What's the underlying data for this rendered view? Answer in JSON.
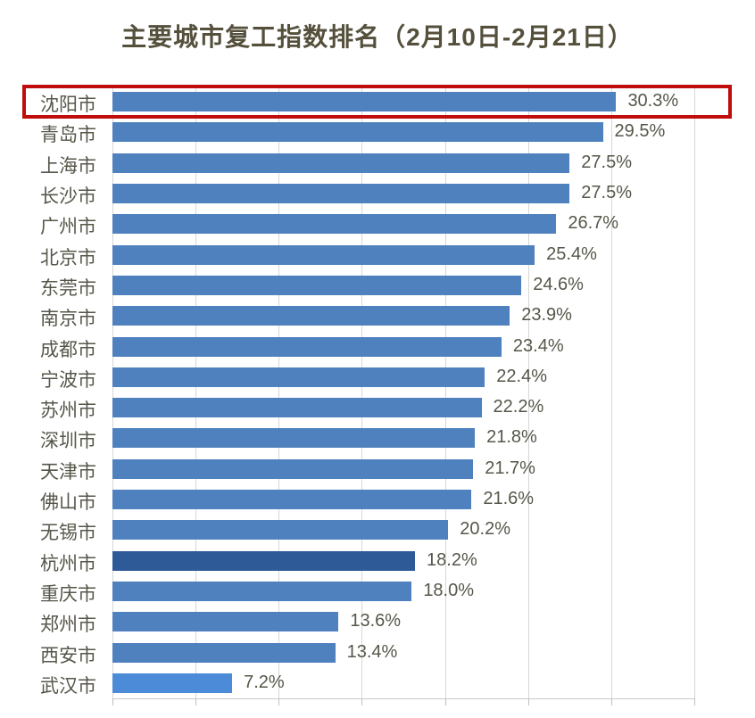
{
  "title": "主要城市复工指数排名（2月10日-2月21日）",
  "colors": {
    "bar": "#4E81BD",
    "bar_dark": "#2E5B97",
    "bar_light": "#4C8BD8",
    "grid": "#D6D6D6",
    "axis": "#BFBFBF",
    "label_text": "#57564A",
    "title_text": "#54503C",
    "highlight_border": "#C00C0C"
  },
  "chart_data": {
    "type": "bar",
    "orientation": "horizontal",
    "title": "主要城市复工指数排名（2月10日-2月21日）",
    "xlabel": "",
    "ylabel": "",
    "xlim": [
      0,
      35
    ],
    "gridline_step": 5,
    "grid": true,
    "unit": "%",
    "categories": [
      "沈阳市",
      "青岛市",
      "上海市",
      "长沙市",
      "广州市",
      "北京市",
      "东莞市",
      "南京市",
      "成都市",
      "宁波市",
      "苏州市",
      "深圳市",
      "天津市",
      "佛山市",
      "无锡市",
      "杭州市",
      "重庆市",
      "郑州市",
      "西安市",
      "武汉市"
    ],
    "values": [
      30.3,
      29.5,
      27.5,
      27.5,
      26.7,
      25.4,
      24.6,
      23.9,
      23.4,
      22.4,
      22.2,
      21.8,
      21.7,
      21.6,
      20.2,
      18.2,
      18.0,
      13.6,
      13.4,
      7.2
    ],
    "value_labels": [
      "30.3%",
      "29.5%",
      "27.5%",
      "27.5%",
      "26.7%",
      "25.4%",
      "24.6%",
      "23.9%",
      "23.4%",
      "22.4%",
      "22.2%",
      "21.8%",
      "21.7%",
      "21.6%",
      "20.2%",
      "18.2%",
      "18.0%",
      "13.6%",
      "13.4%",
      "7.2%"
    ],
    "bar_color_overrides": {
      "杭州市": "#2E5B97",
      "武汉市": "#4C8BD8"
    },
    "highlighted_category": "沈阳市",
    "legend": null
  }
}
